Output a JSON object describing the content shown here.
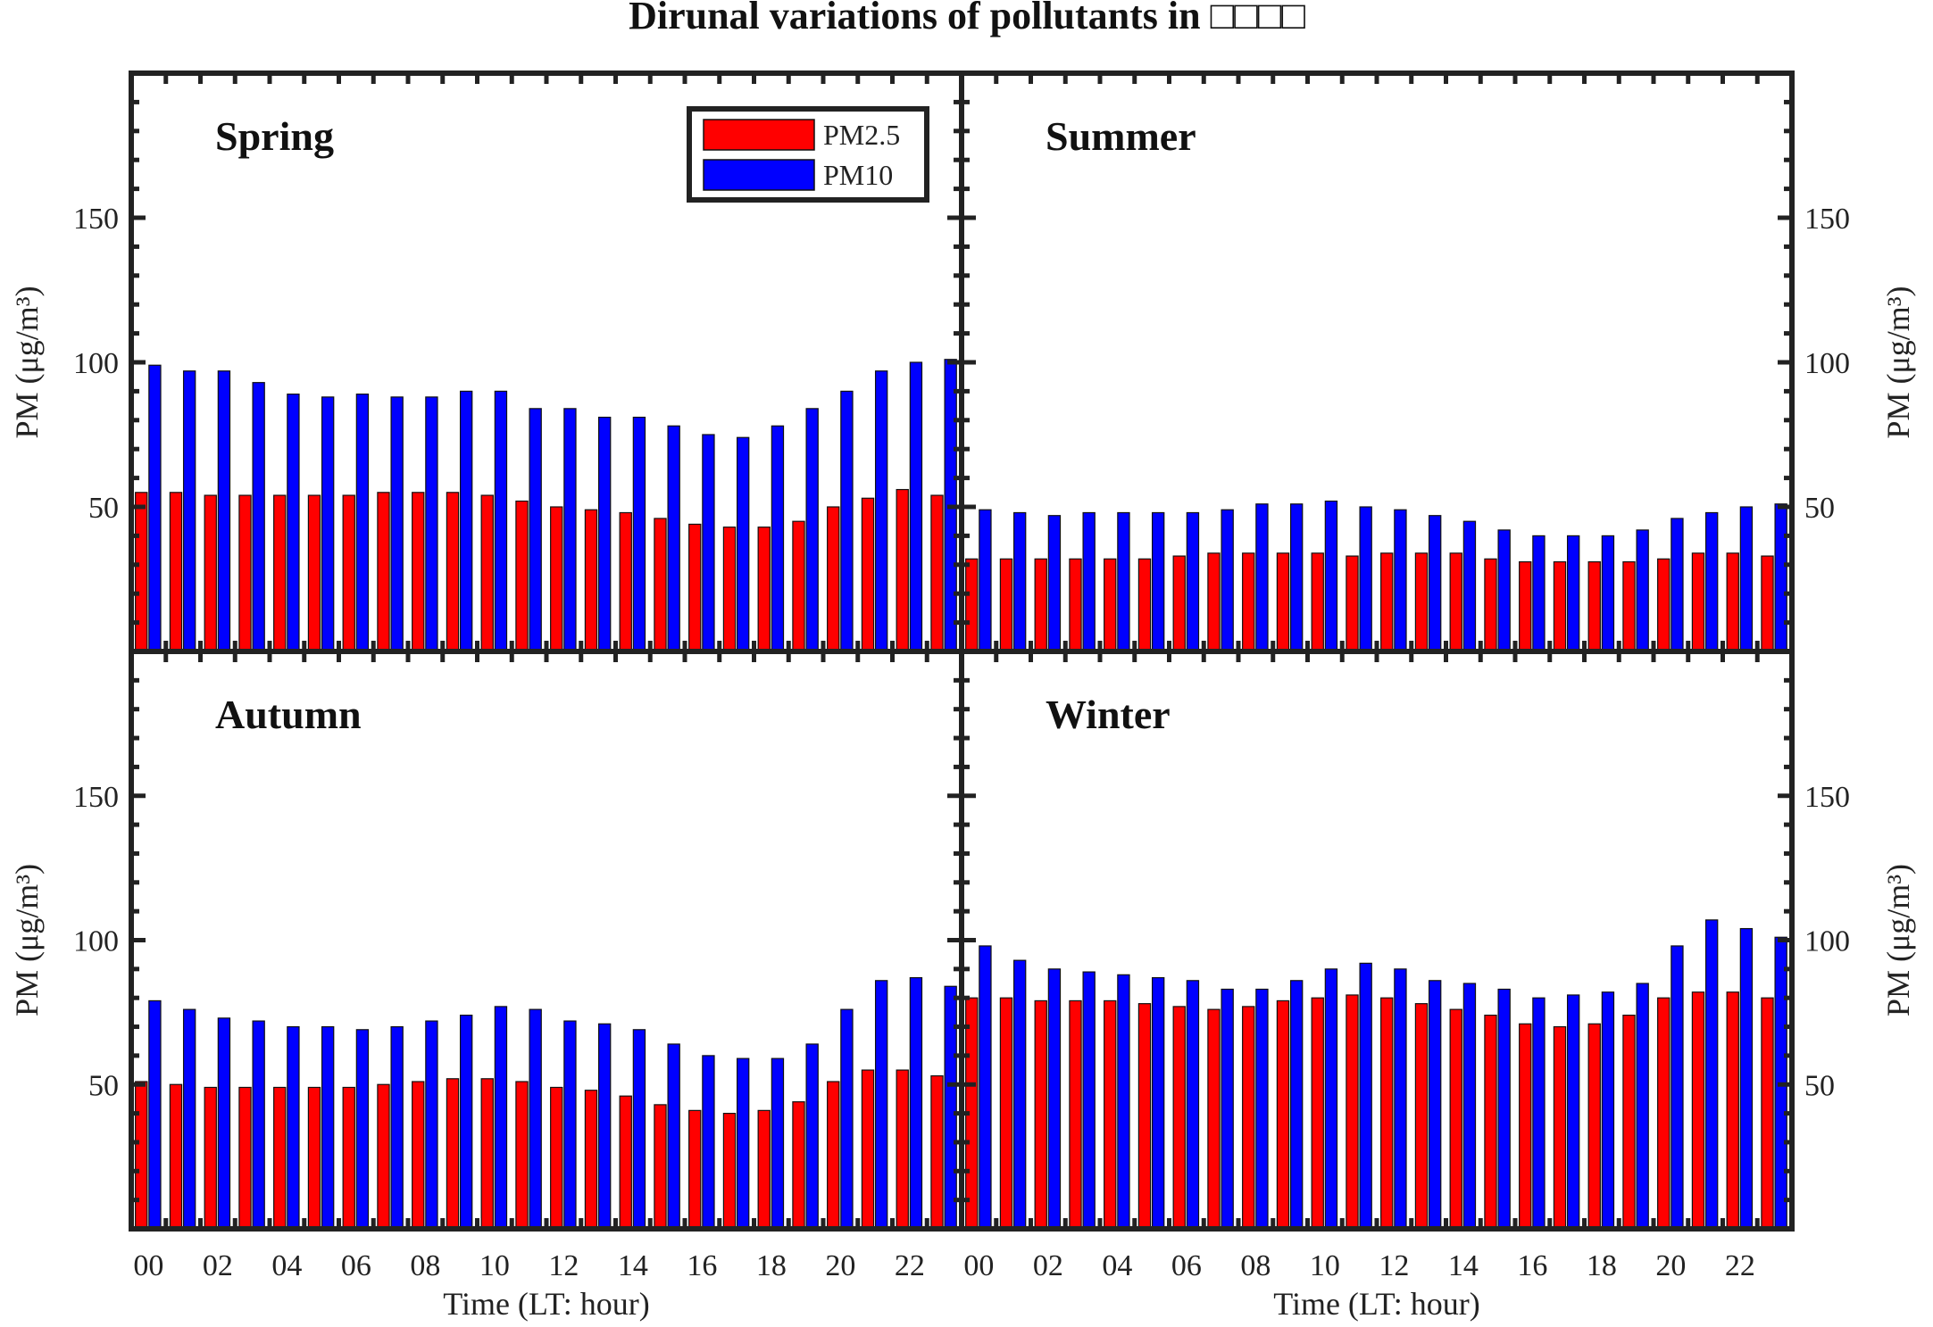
{
  "chart_data": {
    "type": "bar",
    "title": "Dirunal variations of pollutants in □□□□",
    "x": [
      0,
      1,
      2,
      3,
      4,
      5,
      6,
      7,
      8,
      9,
      10,
      11,
      12,
      13,
      14,
      15,
      16,
      17,
      18,
      19,
      20,
      21,
      22,
      23
    ],
    "xticks": [
      "00",
      "02",
      "04",
      "06",
      "08",
      "10",
      "12",
      "14",
      "16",
      "18",
      "20",
      "22"
    ],
    "xlabel": "Time (LT: hour)",
    "ylabel": "PM (μg/m³)",
    "ylim": [
      0,
      200
    ],
    "yticks": [
      50,
      100,
      150
    ],
    "legend": {
      "position": "top-right of first panel",
      "entries": [
        "PM2.5",
        "PM10"
      ]
    },
    "colors": {
      "PM2.5": "#ff0000",
      "PM10": "#0000ff"
    },
    "panels": [
      {
        "name": "Spring",
        "series": [
          {
            "name": "PM2.5",
            "values": [
              55,
              55,
              54,
              54,
              54,
              54,
              54,
              55,
              55,
              55,
              54,
              52,
              50,
              49,
              48,
              46,
              44,
              43,
              43,
              45,
              50,
              53,
              56,
              54
            ]
          },
          {
            "name": "PM10",
            "values": [
              99,
              97,
              97,
              93,
              89,
              88,
              89,
              88,
              88,
              90,
              90,
              84,
              84,
              81,
              81,
              78,
              75,
              74,
              78,
              84,
              90,
              97,
              100,
              101
            ]
          }
        ]
      },
      {
        "name": "Summer",
        "series": [
          {
            "name": "PM2.5",
            "values": [
              32,
              32,
              32,
              32,
              32,
              32,
              33,
              34,
              34,
              34,
              34,
              33,
              34,
              34,
              34,
              32,
              31,
              31,
              31,
              31,
              32,
              34,
              34,
              33
            ]
          },
          {
            "name": "PM10",
            "values": [
              49,
              48,
              47,
              48,
              48,
              48,
              48,
              49,
              51,
              51,
              52,
              50,
              49,
              47,
              45,
              42,
              40,
              40,
              40,
              42,
              46,
              48,
              50,
              51
            ]
          }
        ]
      },
      {
        "name": "Autumn",
        "series": [
          {
            "name": "PM2.5",
            "values": [
              51,
              50,
              49,
              49,
              49,
              49,
              49,
              50,
              51,
              52,
              52,
              51,
              49,
              48,
              46,
              43,
              41,
              40,
              41,
              44,
              51,
              55,
              55,
              53
            ]
          },
          {
            "name": "PM10",
            "values": [
              79,
              76,
              73,
              72,
              70,
              70,
              69,
              70,
              72,
              74,
              77,
              76,
              72,
              71,
              69,
              64,
              60,
              59,
              59,
              64,
              76,
              86,
              87,
              84
            ]
          }
        ]
      },
      {
        "name": "Winter",
        "series": [
          {
            "name": "PM2.5",
            "values": [
              80,
              80,
              79,
              79,
              79,
              78,
              77,
              76,
              77,
              79,
              80,
              81,
              80,
              78,
              76,
              74,
              71,
              70,
              71,
              74,
              80,
              82,
              82,
              80
            ]
          },
          {
            "name": "PM10",
            "values": [
              98,
              93,
              90,
              89,
              88,
              87,
              86,
              83,
              83,
              86,
              90,
              92,
              90,
              86,
              85,
              83,
              80,
              81,
              82,
              85,
              98,
              107,
              104,
              101
            ]
          }
        ]
      }
    ]
  }
}
